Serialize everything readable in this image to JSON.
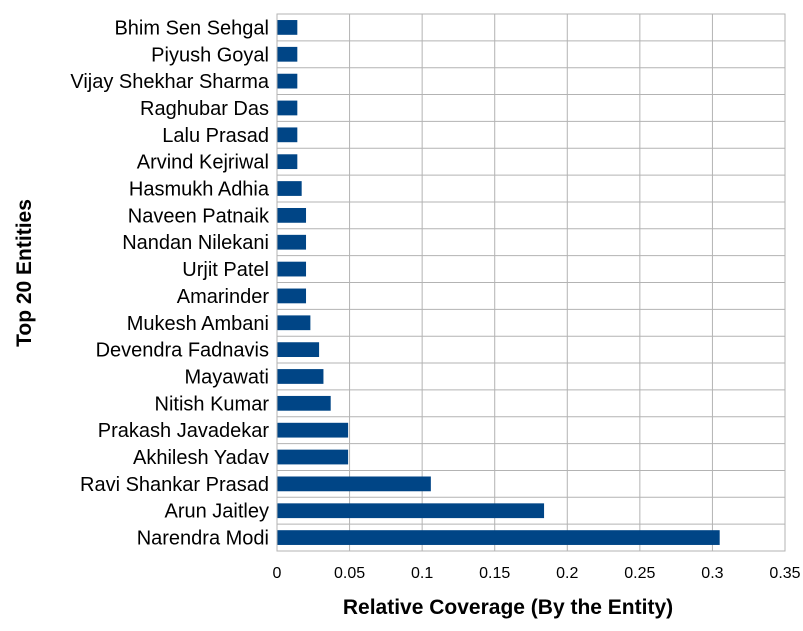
{
  "chart_data": {
    "type": "bar",
    "orientation": "horizontal",
    "xlabel": "Relative Coverage (By the Entity)",
    "ylabel": "Top 20 Entities",
    "xlim": [
      0,
      0.35
    ],
    "xticks": [
      "0",
      "0.05",
      "0.1",
      "0.15",
      "0.2",
      "0.25",
      "0.3",
      "0.35"
    ],
    "xtick_values": [
      0,
      0.05,
      0.1,
      0.15,
      0.2,
      0.25,
      0.3,
      0.35
    ],
    "grid": true,
    "bar_color": "#004586",
    "categories": [
      "Bhim Sen Sehgal",
      "Piyush Goyal",
      "Vijay Shekhar Sharma",
      "Raghubar Das",
      "Lalu Prasad",
      "Arvind Kejriwal",
      "Hasmukh Adhia",
      "Naveen Patnaik",
      "Nandan Nilekani",
      "Urjit Patel",
      "Amarinder",
      "Mukesh Ambani",
      "Devendra Fadnavis",
      "Mayawati",
      "Nitish Kumar",
      "Prakash Javadekar",
      "Akhilesh Yadav",
      "Ravi Shankar Prasad",
      "Arun Jaitley",
      "Narendra Modi"
    ],
    "values": [
      0.014,
      0.014,
      0.014,
      0.014,
      0.014,
      0.014,
      0.017,
      0.02,
      0.02,
      0.02,
      0.02,
      0.023,
      0.029,
      0.032,
      0.037,
      0.049,
      0.049,
      0.106,
      0.184,
      0.305
    ]
  }
}
